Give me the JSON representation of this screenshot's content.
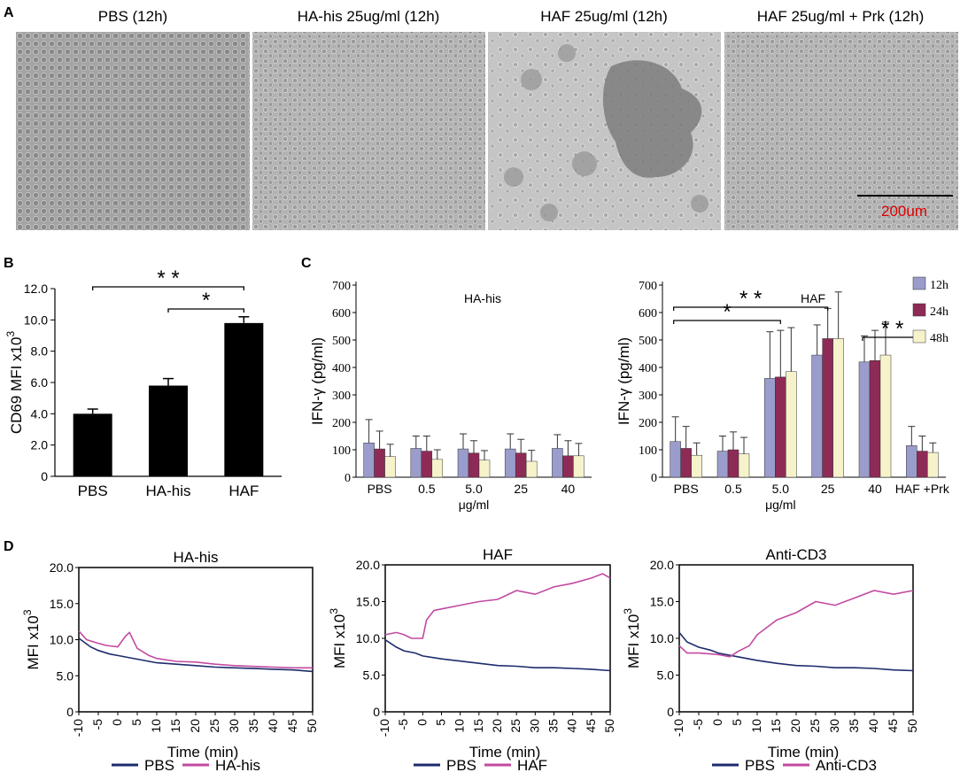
{
  "panels": {
    "A": {
      "letter": "A"
    },
    "B": {
      "letter": "B"
    },
    "C": {
      "letter": "C"
    },
    "D": {
      "letter": "D"
    }
  },
  "micrographs": [
    {
      "title": "PBS (12h)",
      "texture": "dense"
    },
    {
      "title": "HA-his 25ug/ml (12h)",
      "texture": "medium"
    },
    {
      "title": "HAF 25ug/ml (12h)",
      "texture": "cluster"
    },
    {
      "title": "HAF 25ug/ml + Prk (12h)",
      "texture": "medium"
    }
  ],
  "scale_bar_label": "200um",
  "colors": {
    "bar_black": "#000000",
    "s12": "#9a9ccc",
    "s24": "#8e2a56",
    "s48": "#f6f3cb",
    "pbs_line": "#1c2c6c",
    "treat_line": "#c24aa0",
    "scale_red": "#dd0000"
  },
  "chart_data": [
    {
      "id": "B",
      "type": "bar",
      "title": "",
      "ylabel": "CD69 MFI x10³",
      "ylabel_main": "CD69 MFI x10",
      "ylabel_sup": "3",
      "categories": [
        "PBS",
        "HA-his",
        "HAF"
      ],
      "values": [
        4.0,
        5.8,
        9.8
      ],
      "errors": [
        0.3,
        0.45,
        0.4
      ],
      "ylim": [
        0,
        12
      ],
      "yticks": [
        "0",
        "2.0",
        "4.0",
        "6.0",
        "8.0",
        "10.0",
        "12.0"
      ],
      "significance": [
        {
          "from": 0,
          "to": 2,
          "label": "* *"
        },
        {
          "from": 1,
          "to": 2,
          "label": "*"
        }
      ]
    },
    {
      "id": "C1",
      "type": "bar",
      "title": "HA-his",
      "ylabel": "IFN-γ  (pg/ml)",
      "xlabel": "μg/ml",
      "categories": [
        "PBS",
        "0.5",
        "5.0",
        "25",
        "40"
      ],
      "ylim": [
        0,
        700
      ],
      "yticks": [
        "0",
        "100",
        "200",
        "300",
        "400",
        "500",
        "600",
        "700"
      ],
      "series": [
        {
          "name": "12h",
          "values": [
            125,
            105,
            103,
            103,
            105
          ],
          "errors": [
            85,
            45,
            55,
            55,
            50
          ]
        },
        {
          "name": "24h",
          "values": [
            103,
            95,
            88,
            88,
            78
          ],
          "errors": [
            65,
            55,
            45,
            50,
            55
          ]
        },
        {
          "name": "48h",
          "values": [
            75,
            65,
            62,
            58,
            78
          ],
          "errors": [
            45,
            35,
            35,
            40,
            45
          ]
        }
      ]
    },
    {
      "id": "C2",
      "type": "bar",
      "title": "HAF",
      "ylabel": "IFN-γ  (pg/ml)",
      "xlabel": "μg/ml",
      "categories": [
        "PBS",
        "0.5",
        "5.0",
        "25",
        "40",
        "HAF +Prk"
      ],
      "ylim": [
        0,
        700
      ],
      "yticks": [
        "0",
        "100",
        "200",
        "300",
        "400",
        "500",
        "600",
        "700"
      ],
      "series": [
        {
          "name": "12h",
          "values": [
            130,
            95,
            360,
            445,
            420,
            115
          ],
          "errors": [
            90,
            55,
            170,
            110,
            95,
            70
          ]
        },
        {
          "name": "24h",
          "values": [
            105,
            100,
            365,
            505,
            425,
            95
          ],
          "errors": [
            80,
            65,
            170,
            110,
            110,
            55
          ]
        },
        {
          "name": "48h",
          "values": [
            80,
            85,
            385,
            505,
            445,
            90
          ],
          "errors": [
            45,
            60,
            160,
            170,
            120,
            35
          ]
        }
      ],
      "legend": [
        "12h",
        "24h",
        "48h"
      ],
      "significance": [
        {
          "from": 0,
          "to": 3,
          "label": "* *"
        },
        {
          "from": 0,
          "to": 2,
          "label": "*"
        },
        {
          "from": 4,
          "to": 5,
          "label": "* *"
        }
      ]
    },
    {
      "id": "D1",
      "type": "line",
      "title": "HA-his",
      "ylabel_main": "MFI x10",
      "ylabel_sup": "3",
      "xlabel": "Time  (min)",
      "xlim": [
        -10,
        50
      ],
      "ylim": [
        0,
        20
      ],
      "xticks": [
        "-10",
        "-5",
        "0",
        "5",
        "10",
        "15",
        "20",
        "25",
        "30",
        "35",
        "40",
        "45",
        "50"
      ],
      "yticks": [
        "0",
        "5.0",
        "10.0",
        "15.0",
        "20.0"
      ],
      "legend": [
        "PBS",
        "HA-his"
      ],
      "series": [
        {
          "name": "PBS",
          "color_key": "pbs_line",
          "x": [
            -10,
            -7,
            -5,
            -2,
            0,
            3,
            5,
            8,
            10,
            15,
            20,
            25,
            30,
            35,
            40,
            45,
            50
          ],
          "y": [
            10.2,
            9.0,
            8.5,
            8.0,
            7.8,
            7.5,
            7.3,
            7.0,
            6.8,
            6.6,
            6.4,
            6.2,
            6.1,
            6.0,
            5.9,
            5.8,
            5.6
          ]
        },
        {
          "name": "HA-his",
          "color_key": "treat_line",
          "x": [
            -10,
            -8,
            -5,
            -3,
            0,
            2,
            3,
            5,
            8,
            10,
            15,
            20,
            25,
            30,
            35,
            40,
            45,
            50
          ],
          "y": [
            11.2,
            10.0,
            9.5,
            9.2,
            9.0,
            10.5,
            11.0,
            8.8,
            7.8,
            7.4,
            7.0,
            6.9,
            6.6,
            6.4,
            6.3,
            6.2,
            6.1,
            6.1
          ]
        }
      ]
    },
    {
      "id": "D2",
      "type": "line",
      "title": "HAF",
      "ylabel_main": "MFI x10",
      "ylabel_sup": "3",
      "xlabel": "Time  (min)",
      "xlim": [
        -10,
        50
      ],
      "ylim": [
        0,
        20
      ],
      "xticks": [
        "-10",
        "-5",
        "0",
        "5",
        "10",
        "15",
        "20",
        "25",
        "30",
        "35",
        "40",
        "45",
        "50"
      ],
      "yticks": [
        "0",
        "5.0",
        "10.0",
        "15.0",
        "20.0"
      ],
      "legend": [
        "PBS",
        "HAF"
      ],
      "series": [
        {
          "name": "PBS",
          "color_key": "pbs_line",
          "x": [
            -10,
            -7,
            -5,
            -2,
            0,
            5,
            10,
            15,
            20,
            25,
            30,
            35,
            40,
            45,
            50
          ],
          "y": [
            9.8,
            8.8,
            8.3,
            8.0,
            7.6,
            7.2,
            6.9,
            6.6,
            6.3,
            6.2,
            6.0,
            6.0,
            5.9,
            5.8,
            5.6
          ]
        },
        {
          "name": "HAF",
          "color_key": "treat_line",
          "x": [
            -10,
            -7,
            -5,
            -3,
            0,
            1,
            3,
            5,
            10,
            15,
            20,
            25,
            30,
            35,
            40,
            45,
            48,
            50
          ],
          "y": [
            10.5,
            10.8,
            10.5,
            10.0,
            10.0,
            12.5,
            13.8,
            14.0,
            14.5,
            15.0,
            15.3,
            16.5,
            16.0,
            17.0,
            17.5,
            18.2,
            18.8,
            18.2
          ]
        }
      ]
    },
    {
      "id": "D3",
      "type": "line",
      "title": "Anti-CD3",
      "ylabel_main": "MFI x10",
      "ylabel_sup": "3",
      "xlabel": "Time  (min)",
      "xlim": [
        -10,
        50
      ],
      "ylim": [
        0,
        20
      ],
      "xticks": [
        "-10",
        "-5",
        "0",
        "5",
        "10",
        "15",
        "20",
        "25",
        "30",
        "35",
        "40",
        "45",
        "50"
      ],
      "yticks": [
        "0",
        "5.0",
        "10.0",
        "15.0",
        "20.0"
      ],
      "legend": [
        "PBS",
        "Anti-CD3"
      ],
      "series": [
        {
          "name": "PBS",
          "color_key": "pbs_line",
          "x": [
            -10,
            -8,
            -5,
            -2,
            0,
            5,
            10,
            15,
            20,
            25,
            30,
            35,
            40,
            45,
            50
          ],
          "y": [
            10.8,
            9.5,
            8.8,
            8.4,
            8.0,
            7.5,
            7.0,
            6.6,
            6.3,
            6.2,
            6.0,
            6.0,
            5.9,
            5.7,
            5.6
          ]
        },
        {
          "name": "Anti-CD3",
          "color_key": "treat_line",
          "x": [
            -10,
            -8,
            -5,
            0,
            3,
            5,
            8,
            10,
            15,
            20,
            25,
            30,
            35,
            40,
            45,
            50
          ],
          "y": [
            9.0,
            8.0,
            8.0,
            7.8,
            7.5,
            8.2,
            9.0,
            10.5,
            12.5,
            13.5,
            15.0,
            14.5,
            15.5,
            16.5,
            16.0,
            16.5
          ]
        }
      ]
    }
  ]
}
